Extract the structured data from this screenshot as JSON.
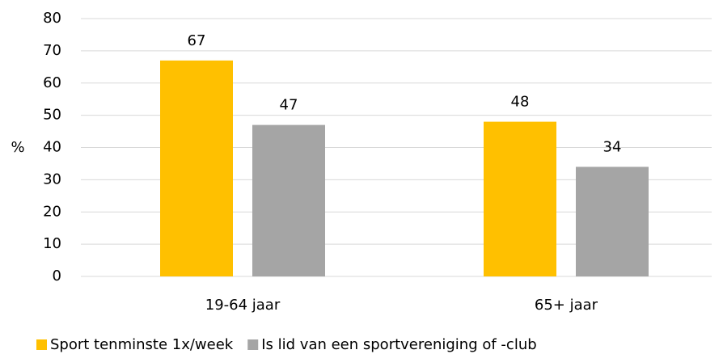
{
  "chart_data": {
    "type": "bar",
    "y_label": "%",
    "categories": [
      "19-64 jaar",
      "65+ jaar"
    ],
    "series": [
      {
        "name": "Sport tenminste 1x/week",
        "color": "#ffc000",
        "values": [
          67,
          48
        ]
      },
      {
        "name": "Is lid van een sportvereniging of -club",
        "color": "#a5a5a5",
        "values": [
          47,
          34
        ]
      }
    ],
    "ylim": [
      0,
      80
    ],
    "yticks": [
      0,
      10,
      20,
      30,
      40,
      50,
      60,
      70,
      80
    ],
    "grid": true,
    "legend": "bottom"
  }
}
